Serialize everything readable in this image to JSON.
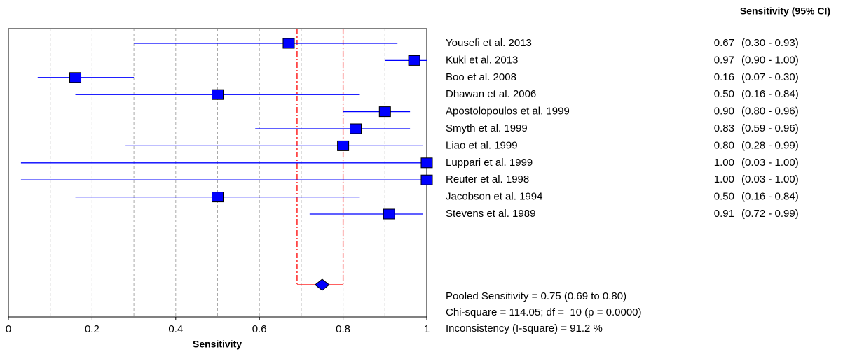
{
  "chart_data": {
    "type": "forest",
    "column_header": "Sensitivity (95% CI)",
    "xlabel": "Sensitivity",
    "xlim": [
      0,
      1
    ],
    "xticks": [
      0,
      0.2,
      0.4,
      0.6,
      0.8,
      1
    ],
    "grid_xticks": [
      0.1,
      0.2,
      0.3,
      0.4,
      0.5,
      0.6,
      0.7,
      0.8,
      0.9
    ],
    "color": "#0000ff",
    "pooled_color": "#ff0000",
    "categories": [
      "Yousefi et al. 2013",
      "Kuki et al. 2013",
      "Boo et al. 2008",
      "Dhawan et al. 2006",
      "Apostolopoulos et al. 1999",
      "Smyth et al. 1999",
      "Liao et al. 1999",
      "Luppari et al. 1999",
      "Reuter et al. 1998",
      "Jacobson et al. 1994",
      "Stevens et al. 1989"
    ],
    "values": [
      0.67,
      0.97,
      0.16,
      0.5,
      0.9,
      0.83,
      0.8,
      1,
      1,
      0.5,
      0.91
    ],
    "value_labels": [
      "0.67",
      "0.97",
      "0.16",
      "0.50",
      "0.90",
      "0.83",
      "0.80",
      "1.00",
      "1.00",
      "0.50",
      "0.91"
    ],
    "lower": [
      0.3,
      0.9,
      0.07,
      0.16,
      0.8,
      0.59,
      0.28,
      0.03,
      0.03,
      0.16,
      0.72
    ],
    "upper": [
      0.93,
      1,
      0.3,
      0.84,
      0.96,
      0.96,
      0.99,
      1,
      1,
      0.84,
      0.99
    ],
    "ci_labels": [
      "(0.30 - 0.93)",
      "(0.90 - 1.00)",
      "(0.07 - 0.30)",
      "(0.16 - 0.84)",
      "(0.80 - 0.96)",
      "(0.59 - 0.96)",
      "(0.28 - 0.99)",
      "(0.03 - 1.00)",
      "(0.03 - 1.00)",
      "(0.16 - 0.84)",
      "(0.72 - 0.99)"
    ],
    "pooled": {
      "value": 0.75,
      "lower": 0.69,
      "upper": 0.8,
      "label": "Pooled Sensitivity = 0.75 (0.69 to 0.80)"
    },
    "annotations": [
      "Chi-square = 114.05; df =  10 (p = 0.0000)",
      "Inconsistency (I-square) = 91.2 %"
    ]
  }
}
